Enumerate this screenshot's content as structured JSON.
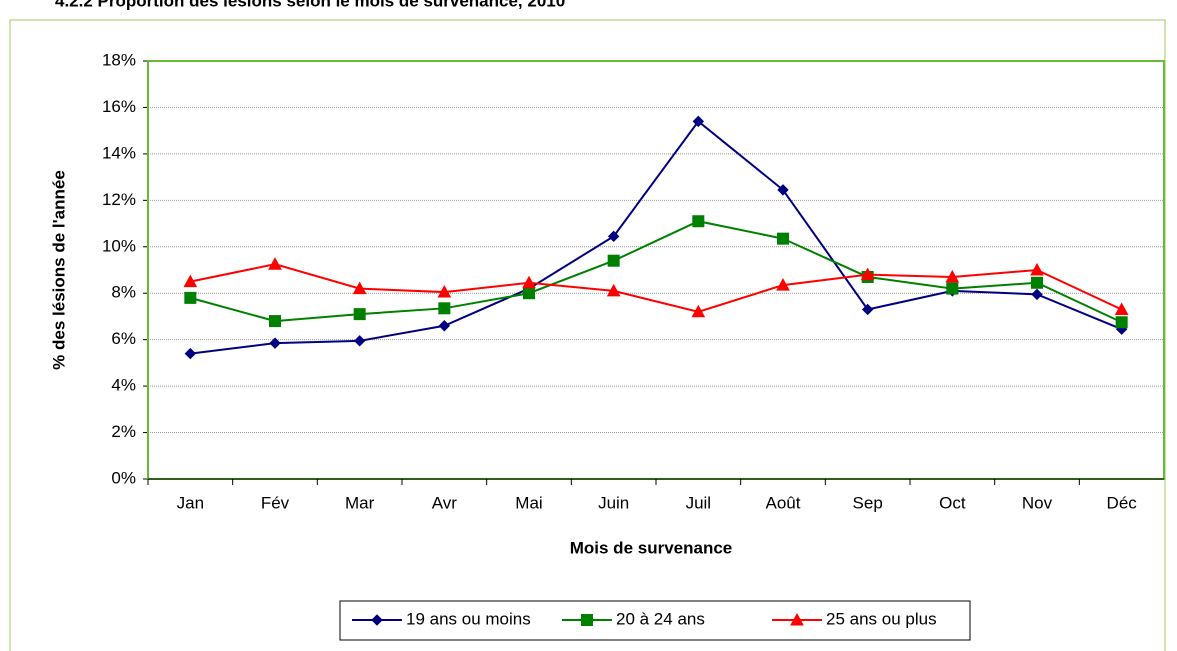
{
  "chart_data": {
    "type": "line",
    "title": "4.2.2     Proportion des lésions selon le mois de survenance, 2010",
    "x_label": "Mois de survenance",
    "y_label": "% des lésions de l'année",
    "categories": [
      "Jan",
      "Fév",
      "Mar",
      "Avr",
      "Mai",
      "Juin",
      "Juil",
      "Août",
      "Sep",
      "Oct",
      "Nov",
      "Déc"
    ],
    "series": [
      {
        "name": "19 ans ou moins",
        "color": "#000080",
        "marker": "diamond",
        "values": [
          5.4,
          5.85,
          5.95,
          6.6,
          8.2,
          10.45,
          15.4,
          12.45,
          7.3,
          8.1,
          7.95,
          6.45
        ]
      },
      {
        "name": "20 à 24 ans",
        "color": "#008000",
        "marker": "square",
        "values": [
          7.8,
          6.8,
          7.1,
          7.35,
          8.0,
          9.4,
          11.1,
          10.35,
          8.7,
          8.2,
          8.45,
          6.75
        ]
      },
      {
        "name": "25 ans ou plus",
        "color": "#ff0000",
        "marker": "triangle",
        "values": [
          8.5,
          9.25,
          8.2,
          8.05,
          8.45,
          8.1,
          7.2,
          8.35,
          8.8,
          8.7,
          9.0,
          7.3
        ]
      }
    ],
    "ylim": [
      0,
      18
    ],
    "yticks": [
      {
        "value": 0,
        "label": "0%"
      },
      {
        "value": 2,
        "label": "2%"
      },
      {
        "value": 4,
        "label": "4%"
      },
      {
        "value": 6,
        "label": "6%"
      },
      {
        "value": 8,
        "label": "8%"
      },
      {
        "value": 10,
        "label": "10%"
      },
      {
        "value": 12,
        "label": "12%"
      },
      {
        "value": 14,
        "label": "14%"
      },
      {
        "value": 16,
        "label": "16%"
      },
      {
        "value": 18,
        "label": "18%"
      }
    ],
    "grid": true,
    "legend": "bottom"
  }
}
